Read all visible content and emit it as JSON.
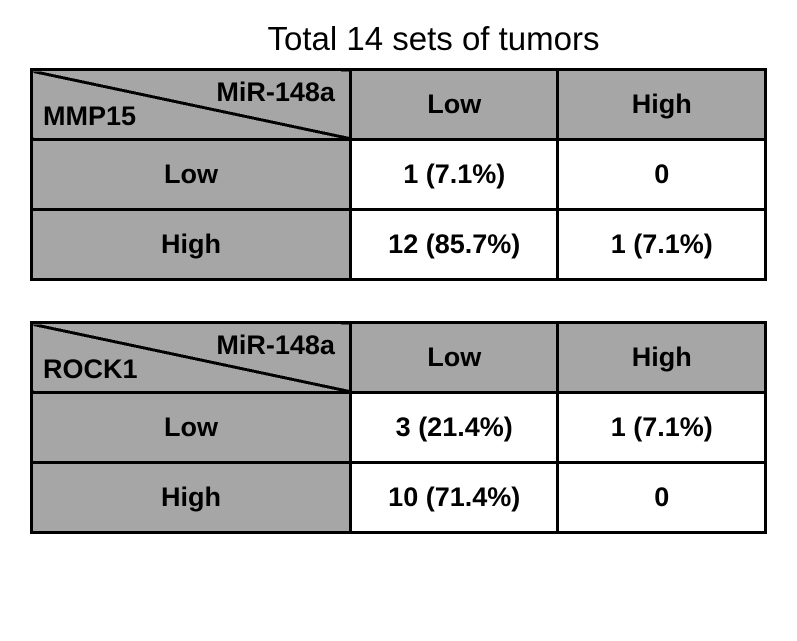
{
  "title": "Total 14 sets of tumors",
  "title_fontsize": 33,
  "header_bg": "#a6a6a6",
  "cell_bg": "#ffffff",
  "border_color": "#000000",
  "cell_fontsize": 27,
  "tables": [
    {
      "col_label": "MiR-148a",
      "row_label": "MMP15",
      "col_headers": [
        "Low",
        "High"
      ],
      "row_headers": [
        "Low",
        "High"
      ],
      "rows": [
        [
          "1 (7.1%)",
          "0"
        ],
        [
          "12 (85.7%)",
          "1 (7.1%)"
        ]
      ]
    },
    {
      "col_label": "MiR-148a",
      "row_label": "ROCK1",
      "col_headers": [
        "Low",
        "High"
      ],
      "row_headers": [
        "Low",
        "High"
      ],
      "rows": [
        [
          "3 (21.4%)",
          "1 (7.1%)"
        ],
        [
          "10 (71.4%)",
          "0"
        ]
      ]
    }
  ]
}
